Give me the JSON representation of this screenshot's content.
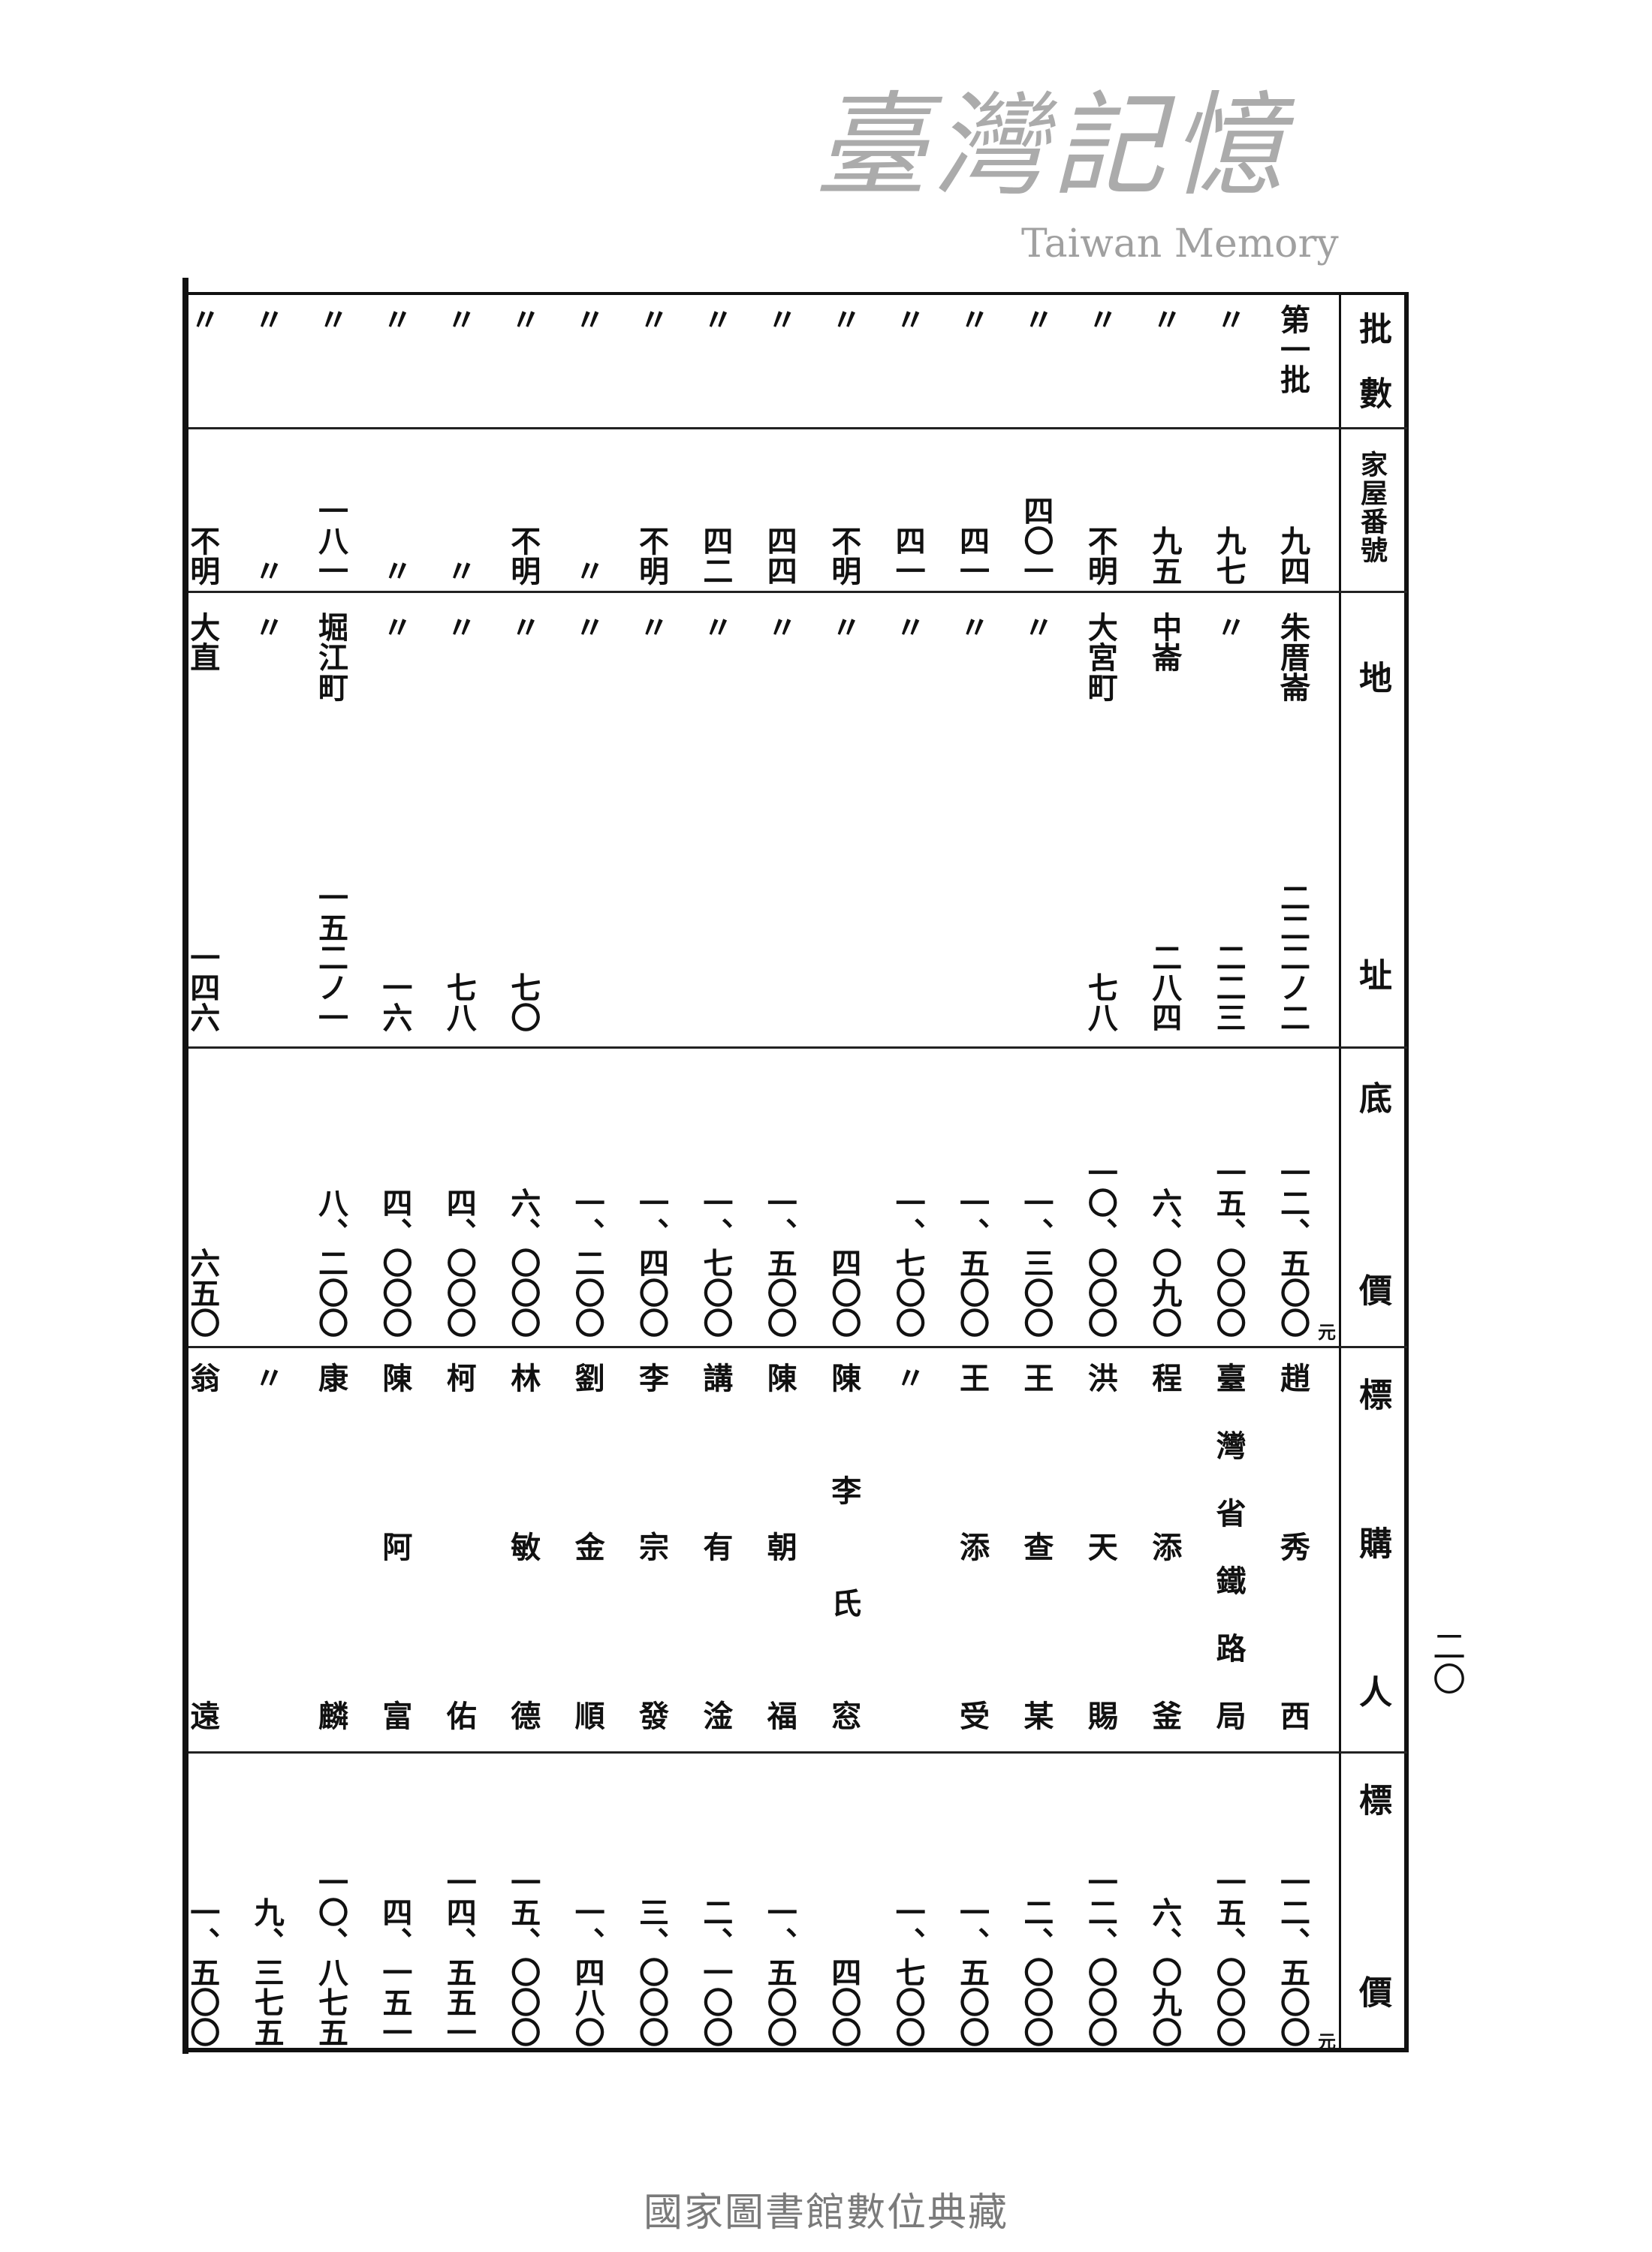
{
  "headers": {
    "batch": "批數",
    "house_no": "家屋番號",
    "address": "地址",
    "base_price": "底價",
    "bidder": "標購人",
    "bid_price": "標價"
  },
  "unit": "元",
  "rows": [
    {
      "batch": "第一批",
      "house_no": "九四",
      "place": "朱厝崙",
      "lot": "二二二ノ二",
      "base_price": "一二、五〇〇",
      "bidder": "趙秀西",
      "bid_price": "一二、五〇〇"
    },
    {
      "batch": "〃",
      "house_no": "九七",
      "place": "〃",
      "lot": "二二三",
      "base_price": "一五、〇〇〇",
      "bidder": "臺灣省鐵路局",
      "bid_price": "一五、〇〇〇"
    },
    {
      "batch": "〃",
      "house_no": "九五",
      "place": "中崙",
      "lot": "二八四",
      "base_price": "六、〇九〇",
      "bidder": "程添釜",
      "bid_price": "六、〇九〇"
    },
    {
      "batch": "〃",
      "house_no": "不明",
      "place": "大宮町",
      "lot": "七八",
      "base_price": "一〇、〇〇〇",
      "bidder": "洪天賜",
      "bid_price": "一二、〇〇〇"
    },
    {
      "batch": "〃",
      "house_no": "四〇一",
      "place": "〃",
      "lot": "",
      "base_price": "一、三〇〇",
      "bidder": "王查某",
      "bid_price": "二、〇〇〇"
    },
    {
      "batch": "〃",
      "house_no": "四一",
      "place": "〃",
      "lot": "",
      "base_price": "一、五〇〇",
      "bidder": "王添受",
      "bid_price": "一、五〇〇"
    },
    {
      "batch": "〃",
      "house_no": "四一",
      "place": "〃",
      "lot": "",
      "base_price": "一、七〇〇",
      "bidder": "〃",
      "bid_price": "一、七〇〇"
    },
    {
      "batch": "〃",
      "house_no": "不明",
      "place": "〃",
      "lot": "",
      "base_price": "四〇〇",
      "bidder": "陳李氏窓",
      "bid_price": "四〇〇"
    },
    {
      "batch": "〃",
      "house_no": "四四",
      "place": "〃",
      "lot": "",
      "base_price": "一、五〇〇",
      "bidder": "陳朝福",
      "bid_price": "一、五〇〇"
    },
    {
      "batch": "〃",
      "house_no": "四二",
      "place": "〃",
      "lot": "",
      "base_price": "一、七〇〇",
      "bidder": "講有淦",
      "bid_price": "二、一〇〇"
    },
    {
      "batch": "〃",
      "house_no": "不明",
      "place": "〃",
      "lot": "",
      "base_price": "一、四〇〇",
      "bidder": "李宗發",
      "bid_price": "三、〇〇〇"
    },
    {
      "batch": "〃",
      "house_no": "〃",
      "place": "〃",
      "lot": "",
      "base_price": "一、二〇〇",
      "bidder": "劉金順",
      "bid_price": "一、四八〇"
    },
    {
      "batch": "〃",
      "house_no": "不明",
      "place": "〃",
      "lot": "七〇",
      "base_price": "六、〇〇〇",
      "bidder": "林敏德",
      "bid_price": "一五、〇〇〇"
    },
    {
      "batch": "〃",
      "house_no": "〃",
      "place": "〃",
      "lot": "七八",
      "base_price": "四、〇〇〇",
      "bidder": "柯佑",
      "bid_price": "一四、五五一"
    },
    {
      "batch": "〃",
      "house_no": "〃",
      "place": "〃",
      "lot": "一六",
      "base_price": "四、〇〇〇",
      "bidder": "陳阿富",
      "bid_price": "四、一五一"
    },
    {
      "batch": "〃",
      "house_no": "一八一",
      "place": "堀江町",
      "lot": "一五二ノ一",
      "base_price": "八、二〇〇",
      "bidder": "康麟",
      "bid_price": "一〇、八七五"
    },
    {
      "batch": "〃",
      "house_no": "〃",
      "place": "〃",
      "lot": "",
      "base_price": "",
      "bidder": "〃",
      "bid_price": "九、三七五"
    },
    {
      "batch": "〃",
      "house_no": "不明",
      "place": "大直",
      "lot": "一四六",
      "base_price": "六五〇",
      "bidder": "翁遠",
      "bid_price": "一、五〇〇"
    }
  ],
  "page_number": "二〇",
  "watermark": {
    "zh": "臺灣記憶",
    "en": "Taiwan Memory"
  },
  "footer": "國家圖書館數位典藏"
}
